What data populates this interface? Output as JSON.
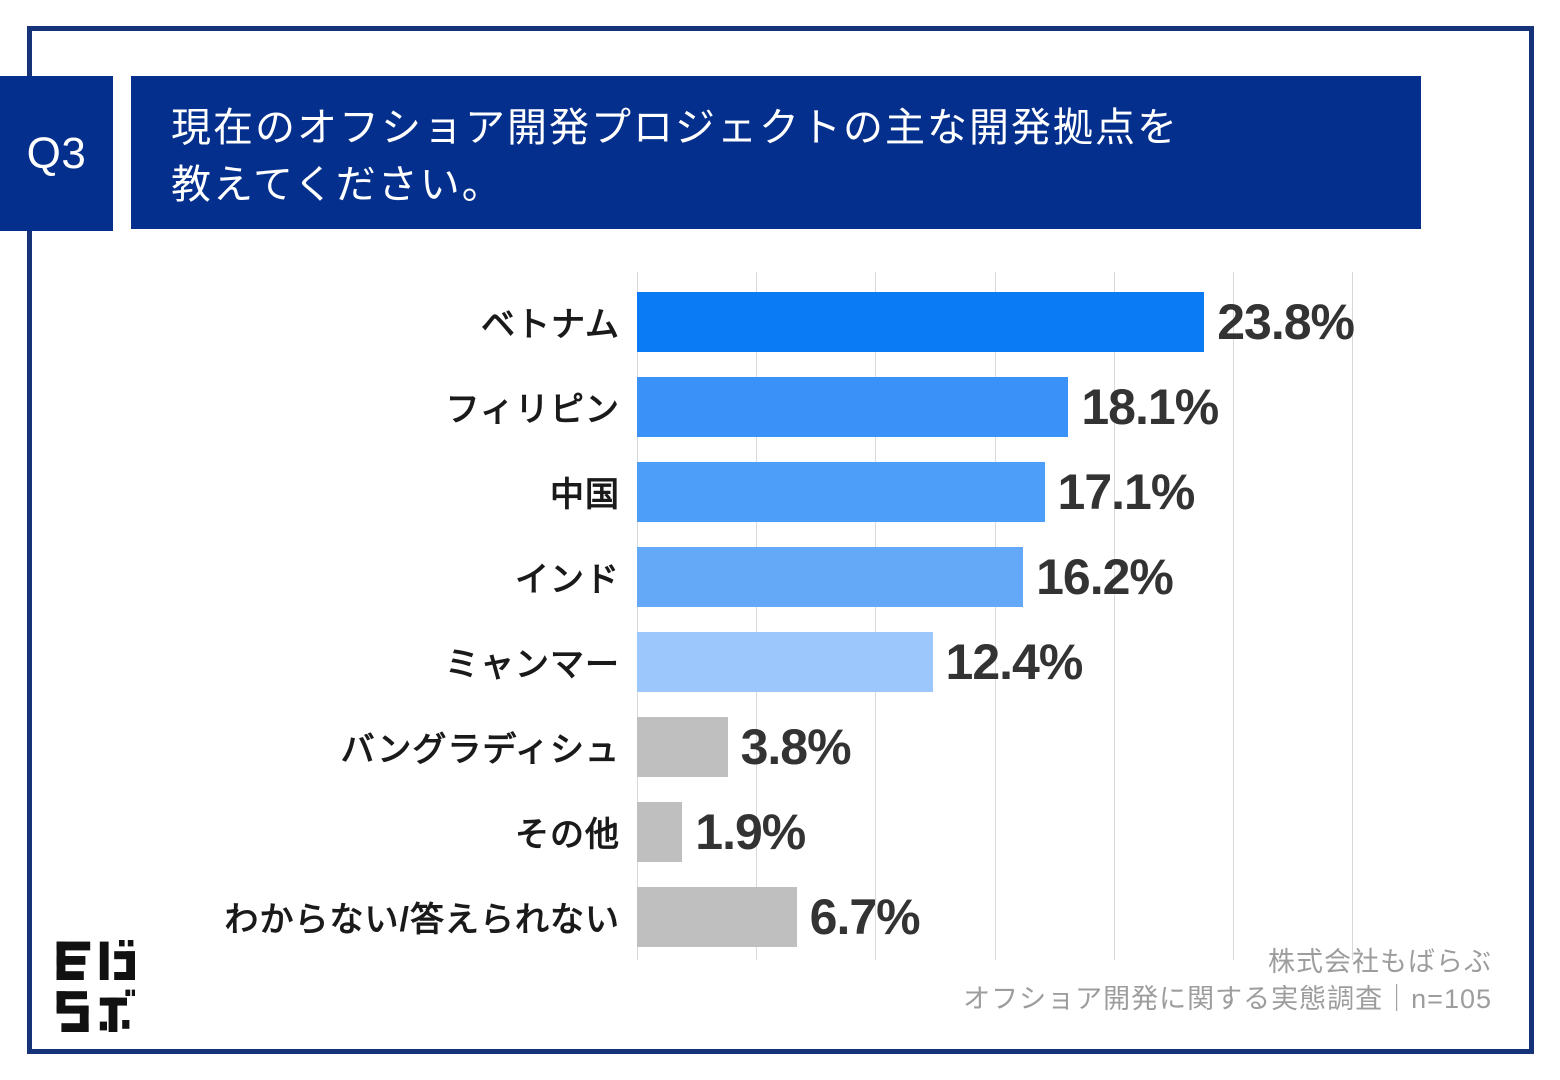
{
  "header": {
    "q_label": "Q3",
    "title_lines": [
      "現在のオフショア開発プロジェクトの主な開発拠点を",
      "教えてください。"
    ]
  },
  "chart_data": {
    "type": "bar",
    "orientation": "horizontal",
    "title": "",
    "xlabel": "",
    "ylabel": "",
    "xlim": [
      0,
      30
    ],
    "gridline_step": 5,
    "grid": true,
    "legend": false,
    "categories": [
      "ベトナム",
      "フィリピン",
      "中国",
      "インド",
      "ミャンマー",
      "バングラディシュ",
      "その他",
      "わからない/答えられない"
    ],
    "values": [
      23.8,
      18.1,
      17.1,
      16.2,
      12.4,
      3.8,
      1.9,
      6.7
    ],
    "value_labels": [
      "23.8%",
      "18.1%",
      "17.1%",
      "16.2%",
      "12.4%",
      "3.8%",
      "1.9%",
      "6.7%"
    ],
    "bar_colors": [
      "#0a7bf5",
      "#3a92f8",
      "#4c9ef9",
      "#63a9f8",
      "#9cc7fd",
      "#bfbfbf",
      "#bfbfbf",
      "#bfbfbf"
    ]
  },
  "footer": {
    "company": "株式会社もばらぶ",
    "survey": "オフショア開発に関する実態調査｜n=105"
  },
  "colors": {
    "header_bg": "#042f8c",
    "frame_border": "#16337a",
    "gridline": "#d9d9d9",
    "category_text": "#1a1a1a",
    "value_text": "#333333",
    "footer_text": "#9d9d9d",
    "logo": "#111111"
  }
}
